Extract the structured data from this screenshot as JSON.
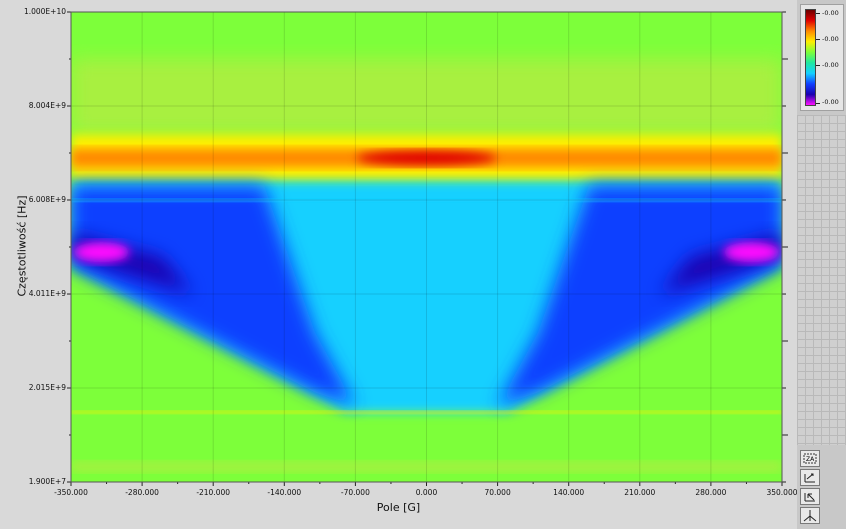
{
  "chart_data": {
    "type": "heatmap",
    "xlabel": "Pole [G]",
    "ylabel": "Częstotliwość [Hz]",
    "xlim": [
      -350,
      350
    ],
    "ylim": [
      19000000,
      10000000000
    ],
    "x_tick_values": [
      -350,
      -280,
      -210,
      -140,
      -70,
      0,
      70,
      140,
      210,
      280,
      350
    ],
    "x_tick_labels": [
      "-350.000",
      "-280.000",
      "-210.000",
      "-140.000",
      "-70.000",
      "0.000",
      "70.000",
      "140.000",
      "210.000",
      "280.000",
      "350.000"
    ],
    "y_tick_values": [
      19000000,
      2015000000,
      4011000000,
      6008000000,
      8004000000,
      10000000000
    ],
    "y_tick_labels": [
      "1.900E+7",
      "2.015E+9",
      "4.011E+9",
      "6.008E+9",
      "8.004E+9",
      "1.000E+10"
    ],
    "colormap": [
      "#ff10ff",
      "#1a00b0",
      "#1040ff",
      "#14d0ff",
      "#20e8a0",
      "#7dff3a",
      "#ffee00",
      "#ff8a00",
      "#e00000",
      "#6d0000"
    ],
    "colorbar_labels": [
      "-0.00",
      "-0.00",
      "-0.00",
      "-0.00"
    ],
    "features": {
      "resonance_band_hz": [
        6700000000,
        7100000000
      ],
      "dark_line_hz": 6000000000,
      "thin_line_hz": 1500000000,
      "v_min_field_g": 80,
      "v_min_freq_hz": 1500000000,
      "v_top_freq_hz": 6400000000,
      "v_edge_freq_hz": 4600000000
    }
  },
  "tools": [
    {
      "name": "zoom-tool-button",
      "icon": "zoom-icon"
    },
    {
      "name": "pan-tool-button",
      "icon": "pan-icon"
    },
    {
      "name": "cursor-tool-button",
      "icon": "cursor-icon"
    },
    {
      "name": "autoscale-tool-button",
      "icon": "crosshair-icon"
    }
  ]
}
